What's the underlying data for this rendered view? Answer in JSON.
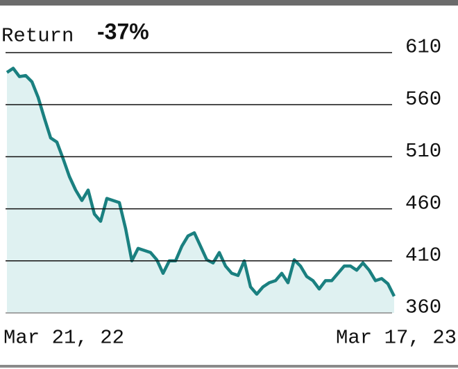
{
  "chart_data": {
    "type": "area",
    "title": "Return",
    "subtitle": "-37%",
    "categories": [
      "Mar 21, 22",
      null,
      null,
      null,
      null,
      null,
      null,
      null,
      null,
      null,
      null,
      null,
      null,
      null,
      null,
      null,
      null,
      null,
      null,
      null,
      null,
      null,
      null,
      null,
      null,
      null,
      null,
      null,
      null,
      null,
      null,
      null,
      null,
      null,
      null,
      null,
      null,
      null,
      null,
      null,
      null,
      null,
      null,
      null,
      null,
      null,
      null,
      null,
      null,
      null,
      null,
      null,
      null,
      null,
      null,
      null,
      null,
      null,
      null,
      null,
      null,
      null,
      "Mar 17, 23"
    ],
    "values": [
      591,
      595,
      587,
      588,
      582,
      567,
      547,
      528,
      524,
      508,
      491,
      478,
      468,
      478,
      455,
      448,
      470,
      468,
      466,
      441,
      410,
      422,
      420,
      418,
      411,
      398,
      410,
      410,
      424,
      434,
      437,
      424,
      411,
      408,
      418,
      405,
      398,
      396,
      410,
      385,
      378,
      385,
      389,
      391,
      398,
      389,
      411,
      405,
      395,
      391,
      383,
      391,
      391,
      398,
      405,
      405,
      401,
      408,
      401,
      391,
      393,
      388,
      376
    ],
    "color": "#1a8080",
    "fill_color": "#dff1f1",
    "ylim": [
      360,
      610
    ],
    "yticks": [
      360,
      410,
      460,
      510,
      560,
      610
    ],
    "grid": true
  }
}
